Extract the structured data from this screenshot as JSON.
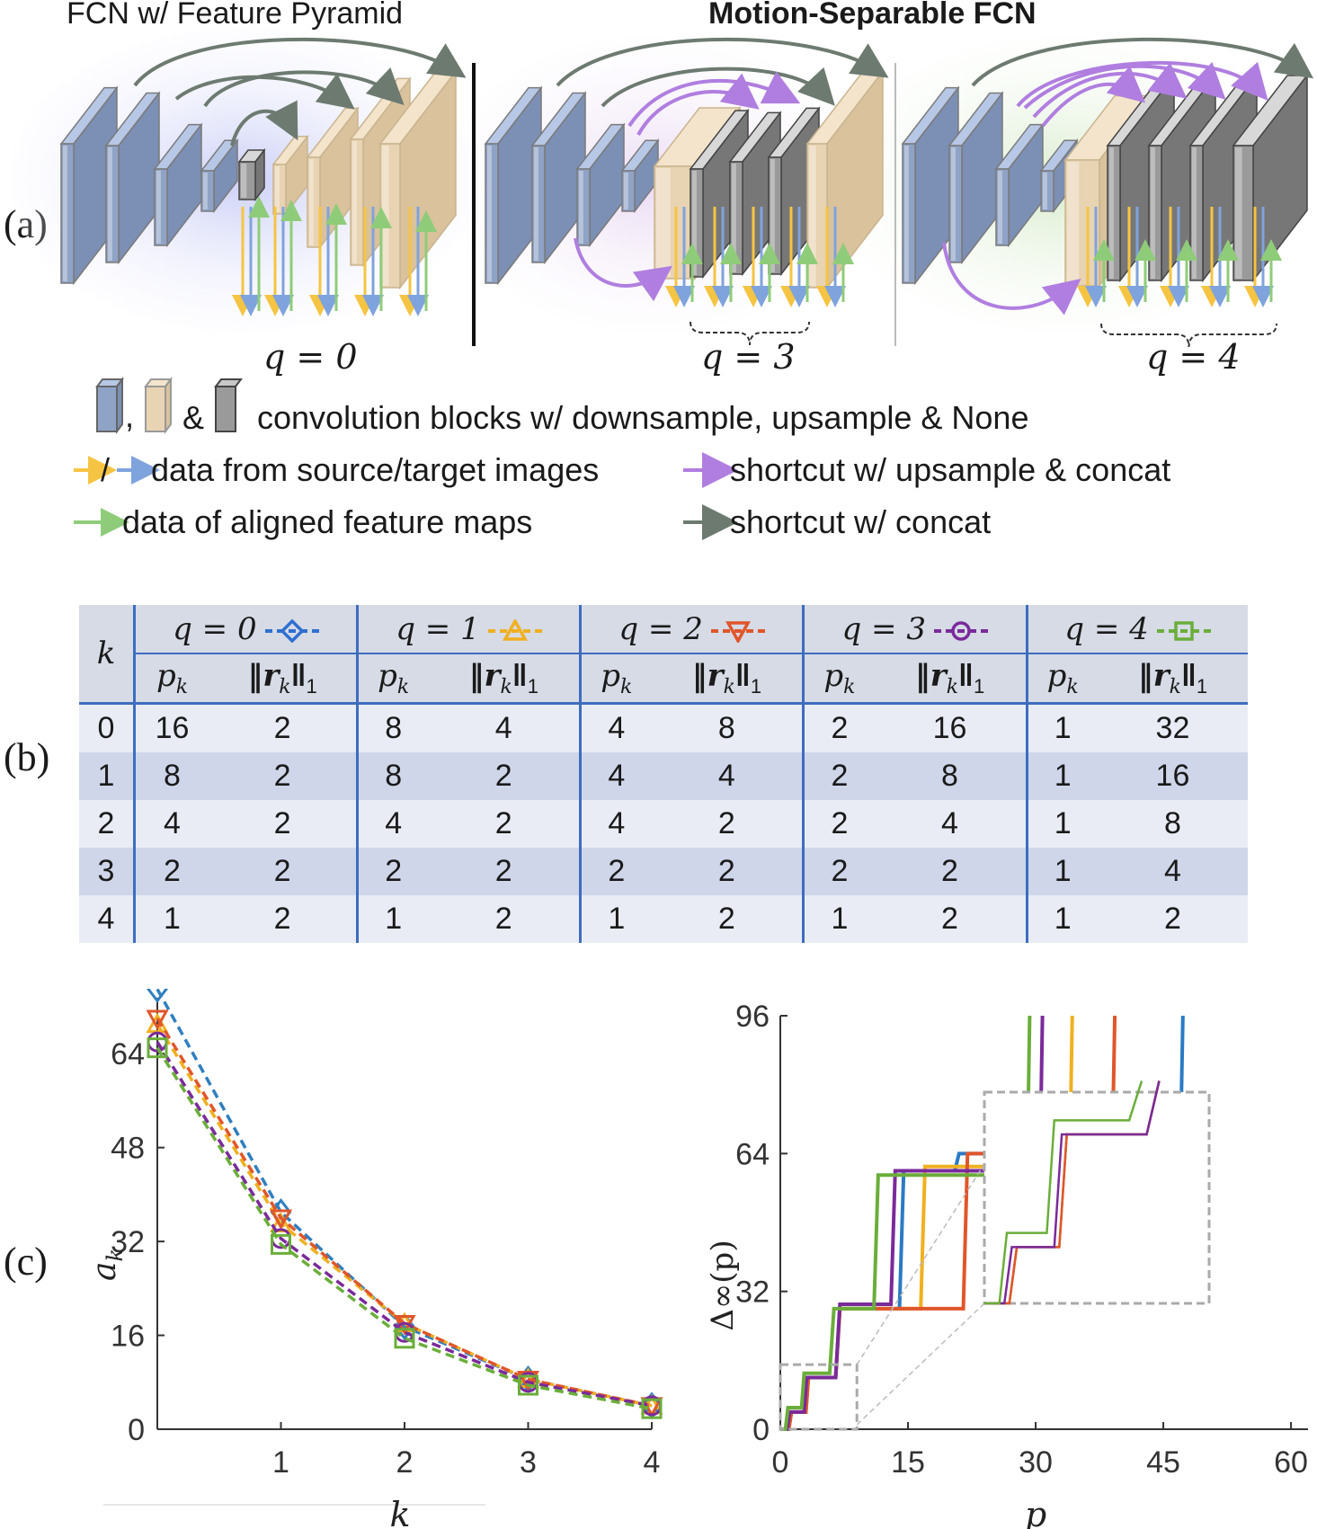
{
  "panels": {
    "a": "(a)",
    "b": "(b)",
    "c": "(c)"
  },
  "panel_a": {
    "title_left": "FCN w/ Feature Pyramid",
    "title_right": "Motion-Separable FCN",
    "q_labels": [
      "q = 0",
      "q = 3",
      "q = 4"
    ]
  },
  "legend": {
    "blocks_amp": "&",
    "blocks_comma": ",",
    "blocks_text": "convolution blocks w/ downsample, upsample & None",
    "source_target_slash": "/",
    "source_target_text": "data from source/target images",
    "upsample_concat_text": "shortcut w/ upsample & concat",
    "aligned_text": "data of aligned feature maps",
    "concat_text": "shortcut w/ concat",
    "colors": {
      "source": "#f5c442",
      "target": "#7fa3dd",
      "aligned": "#8fcc7a",
      "upsample_shortcut": "#b07ee0",
      "concat_shortcut": "#6d7a70"
    }
  },
  "table": {
    "k_header": "k",
    "groups": [
      {
        "q": "q = 0",
        "color": "#2f6fd0",
        "marker": "diamond"
      },
      {
        "q": "q = 1",
        "color": "#f0b020",
        "marker": "triangle-up"
      },
      {
        "q": "q = 2",
        "color": "#e0562a",
        "marker": "triangle-down"
      },
      {
        "q": "q = 3",
        "color": "#7a2a9a",
        "marker": "circle"
      },
      {
        "q": "q = 4",
        "color": "#6aae3a",
        "marker": "square"
      }
    ],
    "sub_headers": [
      "p",
      "‖r‖"
    ],
    "rows": [
      {
        "k": "0",
        "cells": [
          "16",
          "2",
          "8",
          "4",
          "4",
          "8",
          "2",
          "16",
          "1",
          "32"
        ]
      },
      {
        "k": "1",
        "cells": [
          "8",
          "2",
          "8",
          "2",
          "4",
          "4",
          "2",
          "8",
          "1",
          "16"
        ]
      },
      {
        "k": "2",
        "cells": [
          "4",
          "2",
          "4",
          "2",
          "4",
          "2",
          "2",
          "4",
          "1",
          "8"
        ]
      },
      {
        "k": "3",
        "cells": [
          "2",
          "2",
          "2",
          "2",
          "2",
          "2",
          "2",
          "2",
          "1",
          "4"
        ]
      },
      {
        "k": "4",
        "cells": [
          "1",
          "2",
          "1",
          "2",
          "1",
          "2",
          "1",
          "2",
          "1",
          "2"
        ]
      }
    ]
  },
  "chart_data": [
    {
      "type": "line",
      "xlabel": "k",
      "ylabel": "a_k",
      "x": [
        0,
        1,
        2,
        3,
        4
      ],
      "x_ticks": [
        "1",
        "2",
        "3",
        "4"
      ],
      "y_ticks": [
        "0",
        "16",
        "32",
        "48",
        "64"
      ],
      "ylim": [
        0,
        72
      ],
      "series": [
        {
          "values": [
            75,
            37,
            17.5,
            8.5,
            4
          ],
          "color": "#2f7fc0",
          "marker": "diamond"
        },
        {
          "values": [
            69,
            35,
            18,
            8.5,
            4
          ],
          "color": "#f0b020",
          "marker": "triangle-up"
        },
        {
          "values": [
            70,
            36,
            18,
            8.5,
            4
          ],
          "color": "#e0562a",
          "marker": "triangle-down"
        },
        {
          "values": [
            66,
            32.5,
            16.5,
            8,
            4
          ],
          "color": "#7a2a9a",
          "marker": "circle"
        },
        {
          "values": [
            65,
            31.5,
            15.5,
            7.5,
            3.5
          ],
          "color": "#6aae3a",
          "marker": "square"
        }
      ]
    },
    {
      "type": "line",
      "xlabel": "p",
      "ylabel": "Δ∞(p)",
      "x_ticks": [
        "0",
        "15",
        "30",
        "45",
        "60"
      ],
      "y_ticks": [
        "0",
        "32",
        "64",
        "96"
      ],
      "xlim": [
        0,
        62
      ],
      "ylim": [
        0,
        96
      ],
      "series": [
        {
          "color": "#2a7bc4",
          "points": [
            [
              0,
              0
            ],
            [
              1,
              0
            ],
            [
              1.3,
              4
            ],
            [
              3,
              4
            ],
            [
              3.3,
              12
            ],
            [
              6.5,
              12
            ],
            [
              7,
              28
            ],
            [
              14,
              28
            ],
            [
              14.5,
              60
            ],
            [
              20.5,
              60
            ],
            [
              21,
              64
            ],
            [
              47,
              64
            ],
            [
              47.3,
              96
            ]
          ]
        },
        {
          "color": "#f0b020",
          "points": [
            [
              0,
              0
            ],
            [
              1,
              0
            ],
            [
              1.3,
              4
            ],
            [
              3,
              4
            ],
            [
              3.3,
              12
            ],
            [
              6.5,
              12
            ],
            [
              7,
              28
            ],
            [
              16.5,
              28
            ],
            [
              17,
              61
            ],
            [
              34,
              61
            ],
            [
              34.3,
              96
            ]
          ]
        },
        {
          "color": "#e0562a",
          "points": [
            [
              0,
              0
            ],
            [
              1,
              0
            ],
            [
              1.3,
              4
            ],
            [
              3,
              4
            ],
            [
              3.3,
              12
            ],
            [
              6.5,
              12
            ],
            [
              7,
              28
            ],
            [
              21.5,
              28
            ],
            [
              22,
              64
            ],
            [
              39,
              64
            ],
            [
              39.3,
              96
            ]
          ]
        },
        {
          "color": "#7a2a9a",
          "points": [
            [
              0,
              0
            ],
            [
              0.8,
              0
            ],
            [
              1.1,
              4
            ],
            [
              2.8,
              4
            ],
            [
              3.1,
              12
            ],
            [
              6.5,
              12
            ],
            [
              7,
              29
            ],
            [
              13,
              29
            ],
            [
              13.5,
              60
            ],
            [
              30.5,
              60
            ],
            [
              30.8,
              96
            ]
          ]
        },
        {
          "color": "#6aae3a",
          "points": [
            [
              0,
              0
            ],
            [
              0.6,
              0
            ],
            [
              0.9,
              5
            ],
            [
              2.5,
              5
            ],
            [
              2.8,
              13
            ],
            [
              5.8,
              13
            ],
            [
              6.3,
              28
            ],
            [
              11,
              28
            ],
            [
              11.5,
              59
            ],
            [
              29,
              59
            ],
            [
              29.3,
              96
            ]
          ]
        }
      ]
    }
  ]
}
